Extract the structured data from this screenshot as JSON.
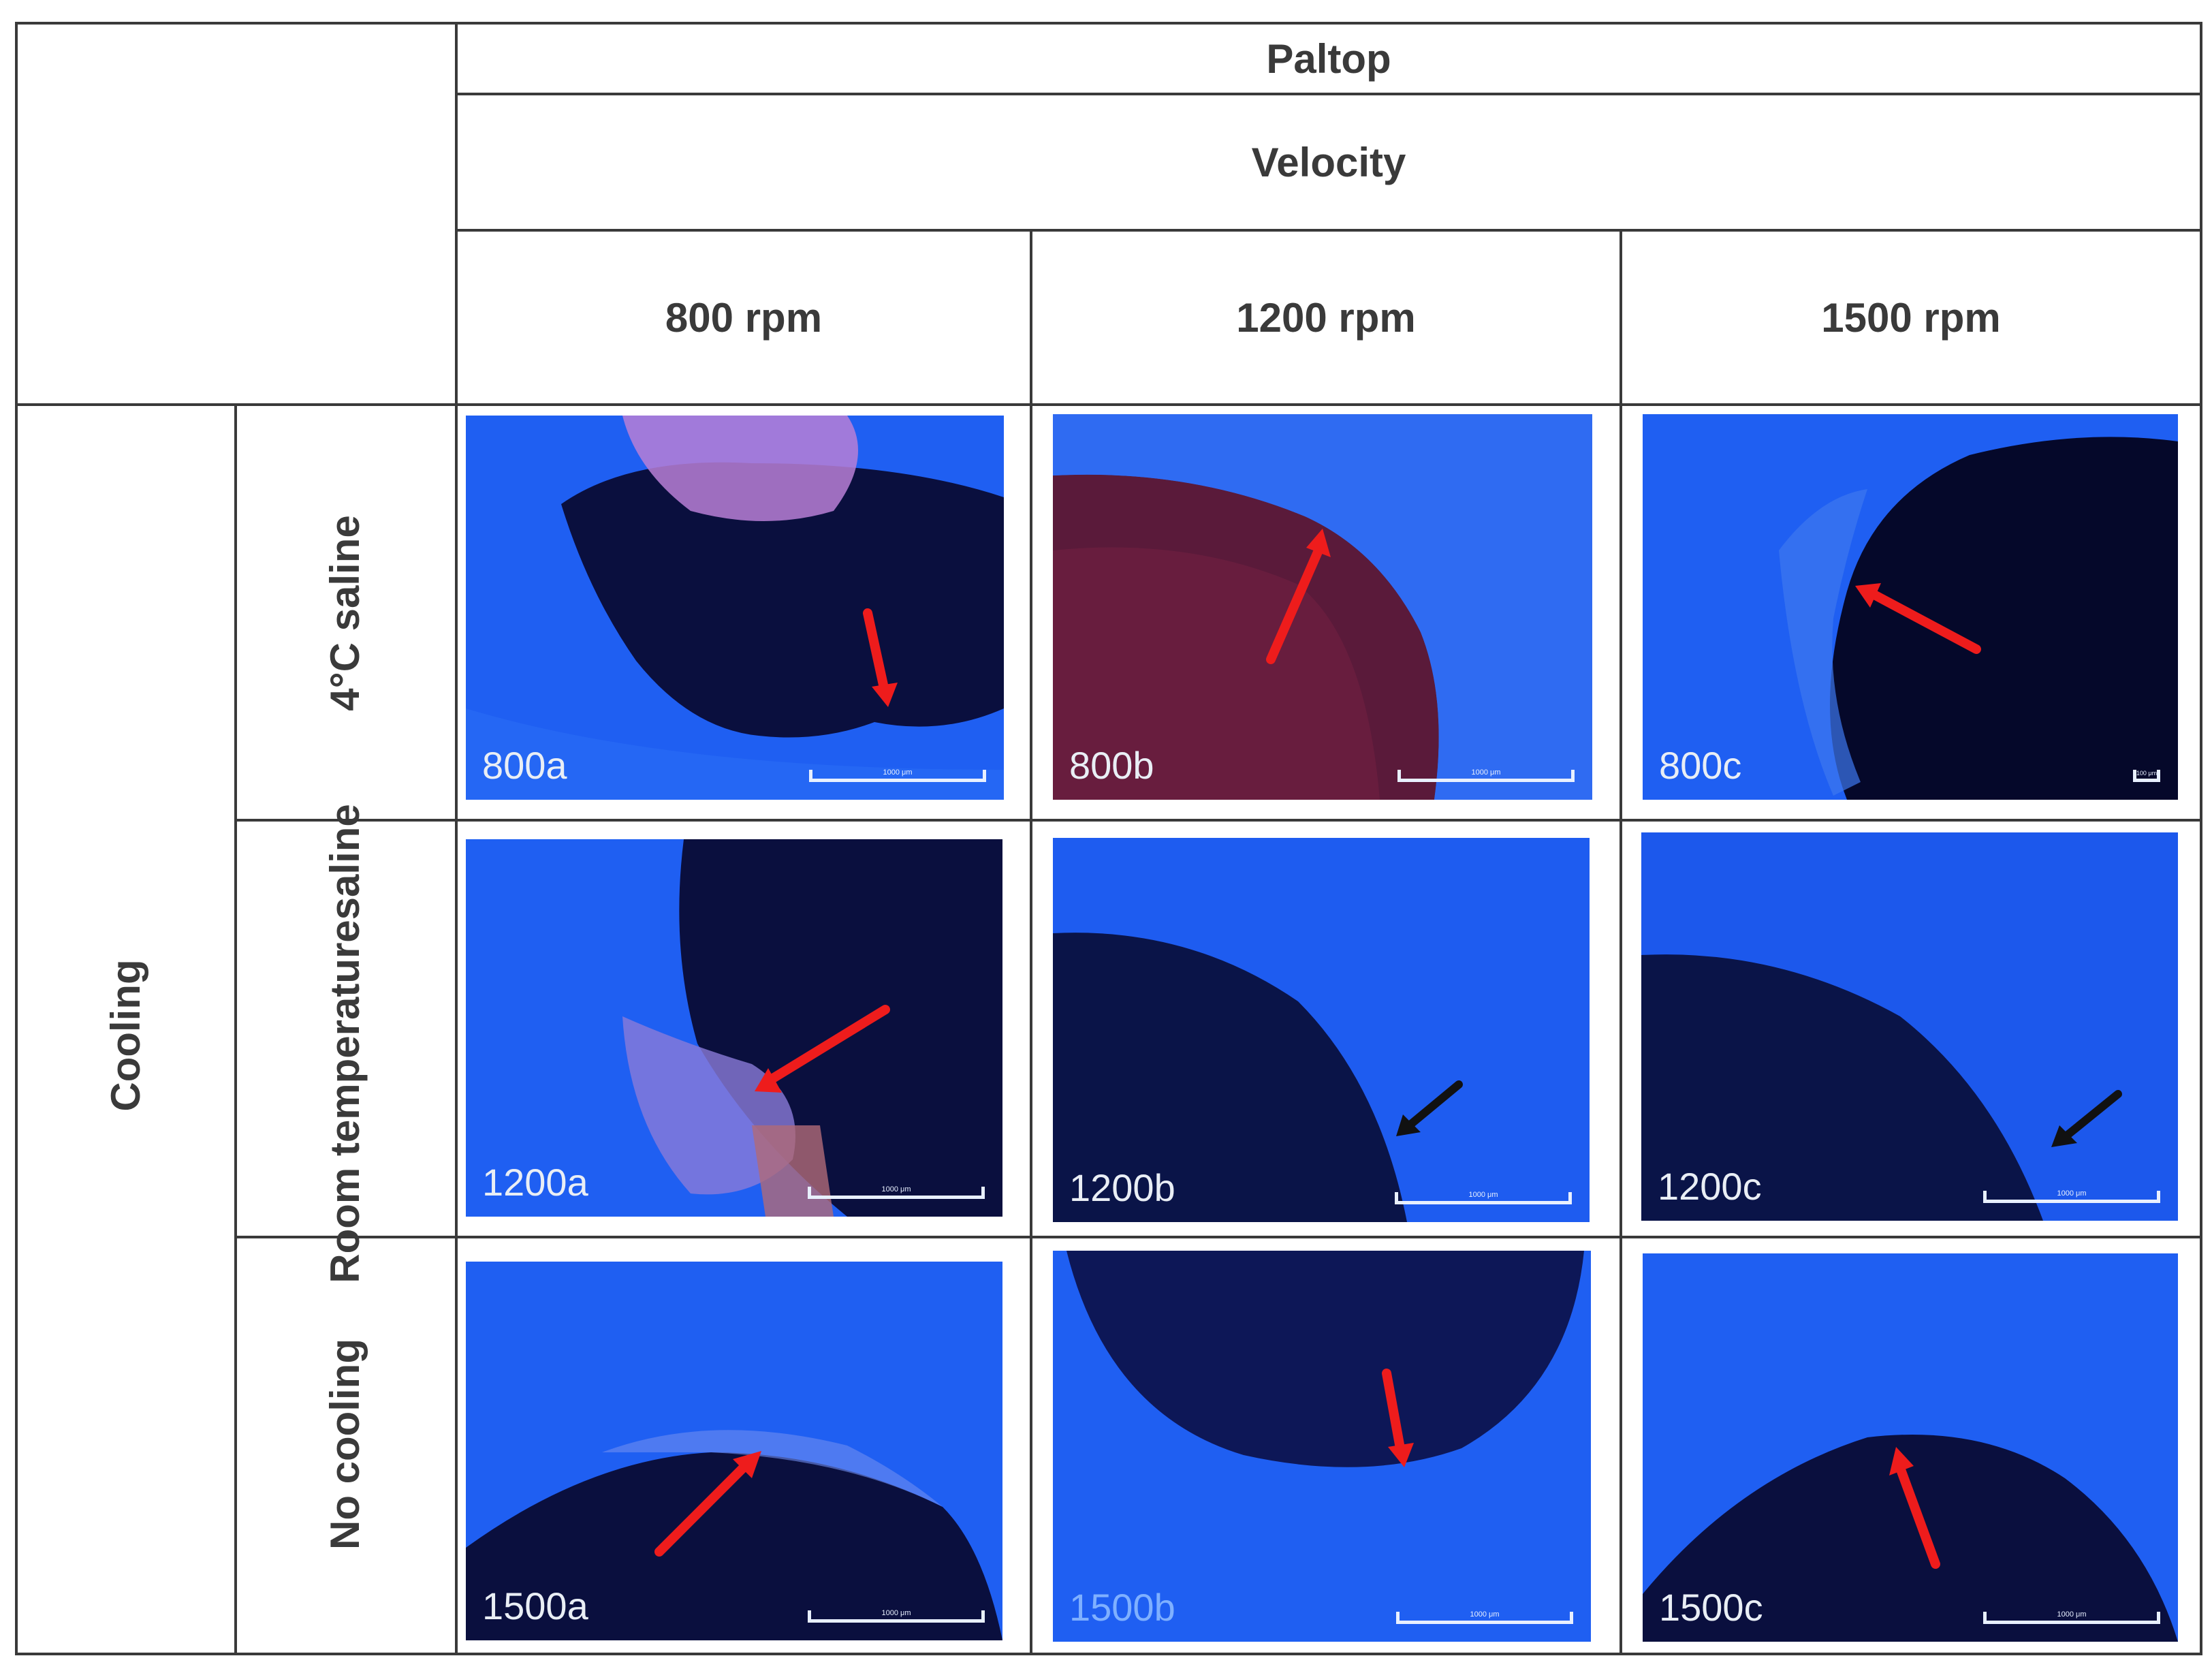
{
  "table": {
    "group_header": "Paltop",
    "velocity_header": "Velocity",
    "columns": [
      "800 rpm",
      "1200 rpm",
      "1500 rpm"
    ],
    "row_group_header": "Cooling",
    "rows": [
      {
        "label_lines": [
          "4°C saline"
        ]
      },
      {
        "label_lines": [
          "Room temperature",
          "saline"
        ]
      },
      {
        "label_lines": [
          "No cooling"
        ]
      }
    ]
  },
  "panels": [
    {
      "label": "800a",
      "scale": "1000 μm",
      "arrow": "red"
    },
    {
      "label": "800b",
      "scale": "1000 μm",
      "arrow": "red"
    },
    {
      "label": "800c",
      "scale": "100 μm",
      "arrow": "red"
    },
    {
      "label": "1200a",
      "scale": "1000 μm",
      "arrow": "red"
    },
    {
      "label": "1200b",
      "scale": "1000 μm",
      "arrow": "black"
    },
    {
      "label": "1200c",
      "scale": "1000 μm",
      "arrow": "black"
    },
    {
      "label": "1500a",
      "scale": "1000 μm",
      "arrow": "red"
    },
    {
      "label": "1500b",
      "scale": "1000 μm",
      "arrow": "red"
    },
    {
      "label": "1500c",
      "scale": "1000 μm",
      "arrow": "red"
    }
  ],
  "colors": {
    "tissue": "#1f5ff2",
    "hole": "#0a0f3e",
    "red_arrow": "#ee1c1c",
    "black_arrow": "#111111",
    "border": "#3a3a3a"
  }
}
